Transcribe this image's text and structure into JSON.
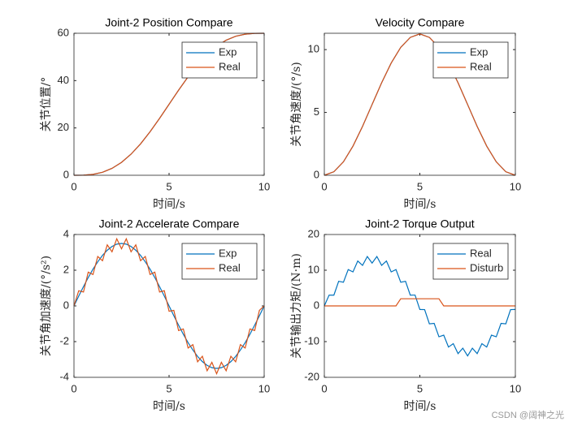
{
  "chart_data": [
    {
      "type": "line",
      "title": "Joint-2 Position Compare",
      "x_label": "时间/s",
      "y_label": "关节位置/°",
      "x": [
        0,
        0.5,
        1,
        1.5,
        2,
        2.5,
        3,
        3.5,
        4,
        4.5,
        5,
        5.5,
        6,
        6.5,
        7,
        7.5,
        8,
        8.5,
        9,
        9.5,
        10
      ],
      "series": [
        {
          "name": "Exp",
          "color": "#0072bd",
          "values": [
            0,
            0.05,
            0.38,
            1.27,
            2.92,
            5.45,
            8.92,
            13.27,
            18.38,
            24.05,
            30,
            35.95,
            41.62,
            46.73,
            51.08,
            54.55,
            57.08,
            58.73,
            59.62,
            59.95,
            60
          ]
        },
        {
          "name": "Real",
          "color": "#d95319",
          "values": [
            0,
            0.05,
            0.38,
            1.27,
            2.92,
            5.45,
            8.92,
            13.27,
            18.38,
            24.05,
            30,
            35.95,
            41.62,
            46.73,
            51.08,
            54.55,
            57.08,
            58.73,
            59.62,
            59.95,
            60
          ]
        }
      ],
      "xlim": [
        0,
        10
      ],
      "xticks": [
        0,
        5,
        10
      ],
      "ylim": [
        0,
        60
      ],
      "yticks": [
        0,
        20,
        40,
        60
      ],
      "legend": "upper right"
    },
    {
      "type": "line",
      "title": "Velocity Compare",
      "x_label": "时间/s",
      "y_label": "关节角速度/(°/s)",
      "x": [
        0,
        0.5,
        1,
        1.5,
        2,
        2.5,
        3,
        3.5,
        4,
        4.5,
        5,
        5.5,
        6,
        6.5,
        7,
        7.5,
        8,
        8.5,
        9,
        9.5,
        10
      ],
      "series": [
        {
          "name": "Exp",
          "color": "#0072bd",
          "values": [
            0,
            0.28,
            1.07,
            2.32,
            3.89,
            5.63,
            7.36,
            8.93,
            10.18,
            10.97,
            11.25,
            10.97,
            10.18,
            8.93,
            7.36,
            5.63,
            3.89,
            2.32,
            1.07,
            0.28,
            0
          ]
        },
        {
          "name": "Real",
          "color": "#d95319",
          "values": [
            0,
            0.28,
            1.07,
            2.32,
            3.89,
            5.63,
            7.36,
            8.93,
            10.18,
            10.97,
            11.25,
            10.97,
            10.18,
            8.93,
            7.36,
            5.63,
            3.89,
            2.32,
            1.07,
            0.28,
            0
          ]
        }
      ],
      "xlim": [
        0,
        10
      ],
      "xticks": [
        0,
        5,
        10
      ],
      "ylim": [
        0,
        11.3
      ],
      "yticks": [
        0,
        5,
        10
      ],
      "legend": "upper right"
    },
    {
      "type": "line",
      "title": "Joint-2 Accelerate Compare",
      "x_label": "时间/s",
      "y_label": "关节角加速度/(°/s²)",
      "x": [
        0,
        0.25,
        0.5,
        0.75,
        1,
        1.25,
        1.5,
        1.75,
        2,
        2.25,
        2.5,
        2.75,
        3,
        3.25,
        3.5,
        3.75,
        4,
        4.25,
        4.5,
        4.75,
        5,
        5.25,
        5.5,
        5.75,
        6,
        6.25,
        6.5,
        6.75,
        7,
        7.25,
        7.5,
        7.75,
        8,
        8.25,
        8.5,
        8.75,
        9,
        9.25,
        9.5,
        9.75,
        10
      ],
      "series": [
        {
          "name": "Exp",
          "color": "#0072bd",
          "values": [
            0,
            0.55,
            1.08,
            1.59,
            2.06,
            2.47,
            2.83,
            3.12,
            3.33,
            3.46,
            3.5,
            3.46,
            3.33,
            3.12,
            2.83,
            2.47,
            2.06,
            1.59,
            1.08,
            0.55,
            0,
            -0.55,
            -1.08,
            -1.59,
            -2.06,
            -2.47,
            -2.83,
            -3.12,
            -3.33,
            -3.46,
            -3.5,
            -3.46,
            -3.33,
            -3.12,
            -2.83,
            -2.47,
            -2.06,
            -1.59,
            -1.08,
            -0.55,
            0
          ]
        },
        {
          "name": "Real",
          "color": "#d95319",
          "values": [
            0,
            0.85,
            0.78,
            1.89,
            1.76,
            2.77,
            2.53,
            3.42,
            3.03,
            3.76,
            3.2,
            3.76,
            3.03,
            3.42,
            2.53,
            2.77,
            1.76,
            1.89,
            0.78,
            0.85,
            -0.3,
            -0.25,
            -1.38,
            -1.29,
            -2.36,
            -2.17,
            -3.13,
            -2.82,
            -3.63,
            -3.16,
            -3.8,
            -3.16,
            -3.63,
            -2.82,
            -3.13,
            -2.17,
            -2.36,
            -1.29,
            -1.38,
            -0.25,
            0
          ]
        }
      ],
      "xlim": [
        0,
        10
      ],
      "xticks": [
        0,
        5,
        10
      ],
      "ylim": [
        -4,
        4
      ],
      "yticks": [
        -4,
        -2,
        0,
        2,
        4
      ],
      "legend": "upper right"
    },
    {
      "type": "line",
      "title": "Joint-2 Torque Output",
      "x_label": "时间/s",
      "y_label": "关节输出力矩/(N·m)",
      "x": [
        0,
        0.25,
        0.5,
        0.75,
        1,
        1.25,
        1.5,
        1.75,
        2,
        2.25,
        2.5,
        2.75,
        3,
        3.25,
        3.5,
        3.75,
        4,
        4.25,
        4.5,
        4.75,
        5,
        5.25,
        5.5,
        5.75,
        6,
        6.25,
        6.5,
        6.75,
        7,
        7.25,
        7.5,
        7.75,
        8,
        8.25,
        8.5,
        8.75,
        9,
        9.25,
        9.5,
        9.75,
        10
      ],
      "series": [
        {
          "name": "Real",
          "color": "#0072bd",
          "values": [
            0,
            3.03,
            3.02,
            6.9,
            6.64,
            10.19,
            9.52,
            12.58,
            11.36,
            13.84,
            12,
            13.84,
            11.36,
            12.58,
            9.52,
            10.19,
            6.64,
            6.9,
            3.02,
            3.03,
            -1,
            -1.03,
            -5.02,
            -4.9,
            -8.64,
            -8.19,
            -11.52,
            -10.58,
            -13.36,
            -11.84,
            -14,
            -11.84,
            -13.36,
            -10.58,
            -11.52,
            -8.19,
            -8.64,
            -4.9,
            -5.02,
            -1.03,
            -1
          ]
        },
        {
          "name": "Disturb",
          "color": "#d95319",
          "values": [
            0,
            0,
            0,
            0,
            0,
            0,
            0,
            0,
            0,
            0,
            0,
            0,
            0,
            0,
            0,
            0,
            2,
            2,
            2,
            2,
            2,
            2,
            2,
            2,
            2,
            0,
            0,
            0,
            0,
            0,
            0,
            0,
            0,
            0,
            0,
            0,
            0,
            0,
            0,
            0,
            0
          ]
        }
      ],
      "xlim": [
        0,
        10
      ],
      "xticks": [
        0,
        5,
        10
      ],
      "ylim": [
        -20,
        20
      ],
      "yticks": [
        -20,
        -10,
        0,
        10,
        20
      ],
      "legend": "upper right"
    }
  ],
  "watermark": "CSDN @阔神之光"
}
